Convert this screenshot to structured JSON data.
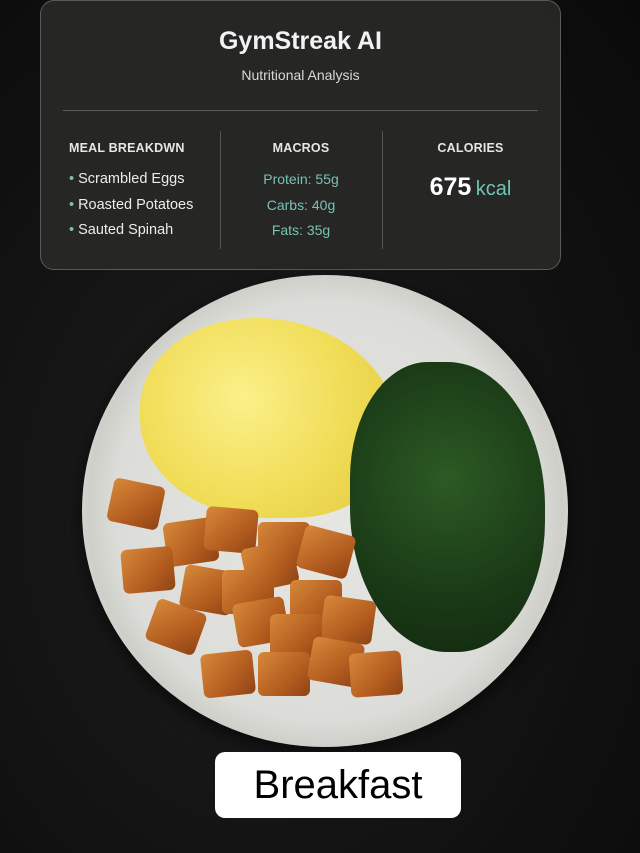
{
  "card": {
    "title": "GymStreak AI",
    "subtitle": "Nutritional Analysis",
    "meal_breakdown": {
      "heading": "MEAL BREAKDWN",
      "items": [
        "Scrambled Eggs",
        "Roasted Potatoes",
        "Sauted Spinah"
      ]
    },
    "macros": {
      "heading": "MACROS",
      "items": [
        "Protein: 55g",
        "Carbs: 40g",
        "Fats: 35g"
      ]
    },
    "calories": {
      "heading": "CALORIES",
      "value": "675",
      "unit": "kcal"
    }
  },
  "caption": "Breakfast",
  "colors": {
    "accent": "#78c2b4",
    "card_bg": "#282826"
  }
}
